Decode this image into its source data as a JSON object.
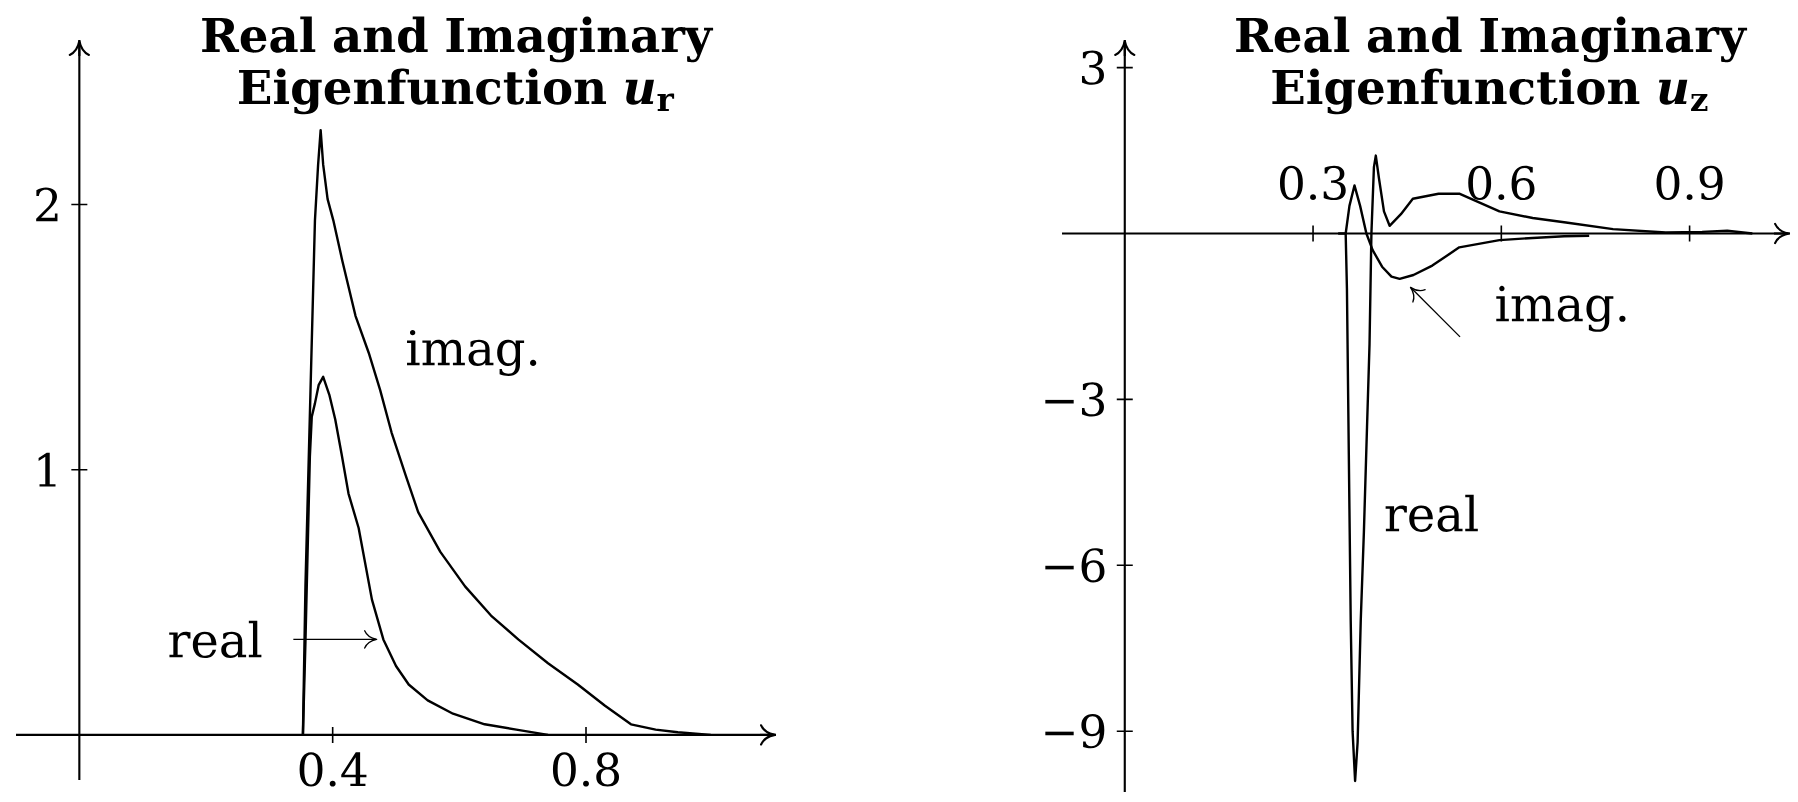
{
  "chart_data": [
    {
      "type": "line",
      "title": "Real and Imaginary Eigenfunction *u*$_{r}$",
      "xlim": [
        -0.1,
        1.1
      ],
      "ylim": [
        -0.17,
        2.62
      ],
      "xticks": [
        0.4,
        0.8
      ],
      "yticks": [
        1,
        2
      ],
      "series": [
        {
          "color": "#000000",
          "x": [
            0.353,
            0.357,
            0.361,
            0.364,
            0.367,
            0.372,
            0.378,
            0.385,
            0.395,
            0.404,
            0.414,
            0.425,
            0.441,
            0.462,
            0.48,
            0.5,
            0.52,
            0.55,
            0.59,
            0.64,
            0.69,
            0.74
          ],
          "values": [
            0,
            0.35,
            0.75,
            1.05,
            1.2,
            1.25,
            1.32,
            1.35,
            1.28,
            1.19,
            1.06,
            0.91,
            0.78,
            0.51,
            0.36,
            0.26,
            0.19,
            0.13,
            0.08,
            0.04,
            0.02,
            0
          ]
        },
        {
          "color": "#000000",
          "x": [
            0.353,
            0.357,
            0.365,
            0.372,
            0.377,
            0.381,
            0.385,
            0.392,
            0.401,
            0.415,
            0.436,
            0.457,
            0.475,
            0.493,
            0.515,
            0.535,
            0.57,
            0.609,
            0.65,
            0.693,
            0.74,
            0.787,
            0.83,
            0.871,
            0.91,
            0.945,
            0.997
          ],
          "values": [
            0,
            0.56,
            1.3,
            1.94,
            2.15,
            2.28,
            2.15,
            2.02,
            1.94,
            1.79,
            1.58,
            1.44,
            1.3,
            1.14,
            0.98,
            0.84,
            0.69,
            0.56,
            0.45,
            0.36,
            0.27,
            0.19,
            0.11,
            0.04,
            0.02,
            0.01,
            0
          ]
        }
      ],
      "annotations": [
        {
          "text": "imag.",
          "x": 0.457,
          "y": 1.44
        },
        {
          "text": "real",
          "x": 0.48,
          "y": 0.36
        }
      ]
    },
    {
      "type": "line",
      "title": "Real and Imaginary Eigenfunction *u*$_{z}$",
      "xlim": [
        -0.1,
        1.06
      ],
      "ylim": [
        -10.1,
        3.5
      ],
      "xticks": [
        0.3,
        0.6,
        0.9
      ],
      "yticks": [
        3,
        {
          "value": -3,
          "label": "−3"
        },
        {
          "value": -6,
          "label": "−6"
        },
        {
          "value": -9,
          "label": "−9"
        }
      ],
      "series": [
        {
          "color": "#000000",
          "x": [
            0.34,
            0.352,
            0.354,
            0.357,
            0.36,
            0.363,
            0.367,
            0.371,
            0.376,
            0.381,
            0.386,
            0.39,
            0.393,
            0.397,
            0.4,
            0.405,
            0.413,
            0.422,
            0.44,
            0.459,
            0.5,
            0.533,
            0.597,
            0.65,
            0.703,
            0.778,
            0.862,
            0.92,
            0.96,
            1.0
          ],
          "values": [
            0,
            0,
            -1,
            -4,
            -7,
            -9,
            -9.9,
            -9.2,
            -7,
            -5.4,
            -3.5,
            -2,
            0,
            1.2,
            1.41,
            1,
            0.4,
            0.14,
            0.35,
            0.63,
            0.72,
            0.72,
            0.4,
            0.28,
            0.2,
            0.08,
            0.02,
            0.03,
            0.05,
            0
          ]
        },
        {
          "color": "#000000",
          "x": [
            0.352,
            0.358,
            0.366,
            0.375,
            0.385,
            0.395,
            0.41,
            0.425,
            0.438,
            0.46,
            0.49,
            0.533,
            0.597,
            0.65,
            0.7,
            0.74
          ],
          "values": [
            0,
            0.5,
            0.87,
            0.5,
            0,
            -0.3,
            -0.6,
            -0.78,
            -0.82,
            -0.75,
            -0.58,
            -0.25,
            -0.12,
            -0.08,
            -0.05,
            -0.04
          ]
        }
      ],
      "annotations": [
        {
          "text": "imag.",
          "x": 0.445,
          "y": -0.82
        },
        {
          "text": "real",
          "x": 0.377,
          "y": -5.06
        }
      ]
    }
  ]
}
